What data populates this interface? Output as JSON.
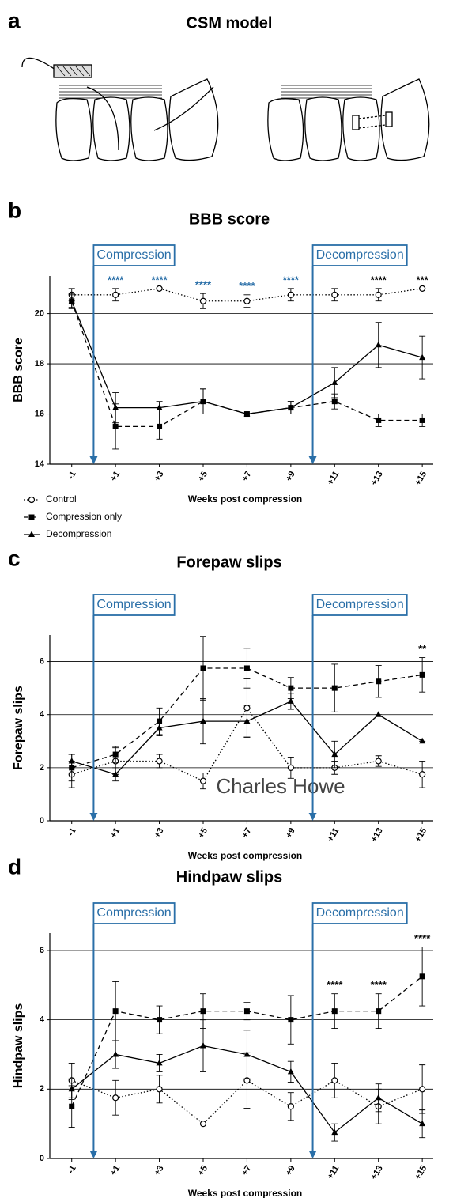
{
  "figure": {
    "panel_a": {
      "label": "a",
      "title": "CSM model"
    },
    "watermark": "Charles Howe"
  },
  "chart_data": [
    {
      "type": "line",
      "panel_label": "b",
      "title": "BBB score",
      "y_label": "BBB score",
      "x_label": "Weeks post compression",
      "x": [
        -1,
        1,
        3,
        5,
        7,
        9,
        11,
        13,
        15
      ],
      "xlim": [
        -2,
        15.5
      ],
      "xticks": [
        -1,
        {
          "value": 1,
          "label": "+1"
        },
        {
          "value": 3,
          "label": "+3"
        },
        {
          "value": 5,
          "label": "+5"
        },
        {
          "value": 7,
          "label": "+7"
        },
        {
          "value": 9,
          "label": "+9"
        },
        {
          "value": 11,
          "label": "+11"
        },
        {
          "value": 13,
          "label": "+13"
        },
        {
          "value": 15,
          "label": "+15"
        }
      ],
      "ylim": [
        14,
        21.5
      ],
      "yticks": [
        14,
        16,
        18,
        20
      ],
      "grid": true,
      "legend": "bottom-left",
      "events": [
        {
          "x": 0,
          "label": "Compression"
        },
        {
          "x": 10,
          "label": "Decompression"
        }
      ],
      "event_color": "#2a6fa8",
      "significance": [
        {
          "x": 1,
          "label": "****",
          "color": "#2a6fa8"
        },
        {
          "x": 3,
          "label": "****",
          "color": "#2a6fa8"
        },
        {
          "x": 5,
          "label": "****",
          "color": "#2a6fa8"
        },
        {
          "x": 7,
          "label": "****",
          "color": "#2a6fa8"
        },
        {
          "x": 9,
          "label": "****",
          "color": "#2a6fa8"
        },
        {
          "x": 13,
          "label": "****",
          "color": "#000000"
        },
        {
          "x": 15,
          "label": "***",
          "color": "#000000"
        }
      ],
      "series": [
        {
          "name": "Control",
          "color": "#000000",
          "marker": "circle",
          "line_style": "dotted",
          "values": [
            20.75,
            20.75,
            21,
            20.5,
            20.5,
            20.75,
            20.75,
            20.75,
            21
          ],
          "errors": [
            0.25,
            0.25,
            0,
            0.3,
            0.25,
            0.25,
            0.25,
            0.25,
            0
          ]
        },
        {
          "name": "Compression only",
          "color": "#000000",
          "marker": "square",
          "line_style": "dashed",
          "values": [
            20.5,
            15.5,
            15.5,
            16.5,
            16,
            16.25,
            16.5,
            15.75,
            15.75
          ],
          "errors": [
            0.3,
            0.9,
            0.5,
            0.5,
            0,
            0.25,
            0.3,
            0.25,
            0.25
          ]
        },
        {
          "name": "Decompression",
          "color": "#000000",
          "marker": "triangle",
          "line_style": "solid",
          "values": [
            20.5,
            16.25,
            16.25,
            16.5,
            16,
            16.25,
            17.25,
            18.75,
            18.25
          ],
          "errors": [
            0.25,
            0.6,
            0.25,
            0.5,
            0,
            0.25,
            0.6,
            0.9,
            0.85
          ]
        }
      ]
    },
    {
      "type": "line",
      "panel_label": "c",
      "title": "Forepaw slips",
      "y_label": "Forepaw slips",
      "x_label": "Weeks post compression",
      "x": [
        -1,
        1,
        3,
        5,
        7,
        9,
        11,
        13,
        15
      ],
      "xlim": [
        -2,
        15.5
      ],
      "xticks": [
        -1,
        {
          "value": 1,
          "label": "+1"
        },
        {
          "value": 3,
          "label": "+3"
        },
        {
          "value": 5,
          "label": "+5"
        },
        {
          "value": 7,
          "label": "+7"
        },
        {
          "value": 9,
          "label": "+9"
        },
        {
          "value": 11,
          "label": "+11"
        },
        {
          "value": 13,
          "label": "+13"
        },
        {
          "value": 15,
          "label": "+15"
        }
      ],
      "ylim": [
        0,
        7
      ],
      "yticks": [
        0,
        2,
        4,
        6
      ],
      "grid": true,
      "events": [
        {
          "x": 0,
          "label": "Compression"
        },
        {
          "x": 10,
          "label": "Decompression"
        }
      ],
      "event_color": "#2a6fa8",
      "significance": [
        {
          "x": 15,
          "label": "**",
          "color": "#000000"
        }
      ],
      "series": [
        {
          "name": "Control",
          "color": "#000000",
          "marker": "circle",
          "line_style": "dotted",
          "values": [
            1.75,
            2.25,
            2.25,
            1.5,
            4.25,
            2,
            2,
            2.25,
            1.75
          ],
          "errors": [
            0.5,
            0.5,
            0.25,
            0.3,
            1.1,
            0.4,
            0.25,
            0.2,
            0.5
          ]
        },
        {
          "name": "Compression only",
          "color": "#000000",
          "marker": "square",
          "line_style": "dashed",
          "values": [
            2,
            2.5,
            3.75,
            5.75,
            5.75,
            5,
            5,
            5.25,
            5.5
          ],
          "errors": [
            0.5,
            0.3,
            0.5,
            1.2,
            0.75,
            0.4,
            0.9,
            0.6,
            0.65
          ]
        },
        {
          "name": "Decompression",
          "color": "#000000",
          "marker": "triangle",
          "line_style": "solid",
          "values": [
            2.25,
            1.75,
            3.5,
            3.75,
            3.75,
            4.5,
            2.5,
            4,
            3
          ],
          "errors": [
            0.25,
            0.25,
            0.3,
            0.85,
            0.6,
            0.3,
            0.5,
            0,
            0
          ]
        }
      ]
    },
    {
      "type": "line",
      "panel_label": "d",
      "title": "Hindpaw slips",
      "y_label": "Hindpaw slips",
      "x_label": "Weeks post compression",
      "x": [
        -1,
        1,
        3,
        5,
        7,
        9,
        11,
        13,
        15
      ],
      "xlim": [
        -2,
        15.5
      ],
      "xticks": [
        -1,
        {
          "value": 1,
          "label": "+1"
        },
        {
          "value": 3,
          "label": "+3"
        },
        {
          "value": 5,
          "label": "+5"
        },
        {
          "value": 7,
          "label": "+7"
        },
        {
          "value": 9,
          "label": "+9"
        },
        {
          "value": 11,
          "label": "+11"
        },
        {
          "value": 13,
          "label": "+13"
        },
        {
          "value": 15,
          "label": "+15"
        }
      ],
      "ylim": [
        0,
        6.5
      ],
      "yticks": [
        0,
        2,
        4,
        6
      ],
      "grid": true,
      "events": [
        {
          "x": 0,
          "label": "Compression"
        },
        {
          "x": 10,
          "label": "Decompression"
        }
      ],
      "event_color": "#2a6fa8",
      "significance": [
        {
          "x": 11,
          "label": "****",
          "color": "#000000"
        },
        {
          "x": 13,
          "label": "****",
          "color": "#000000"
        },
        {
          "x": 15,
          "label": "****",
          "color": "#000000"
        }
      ],
      "series": [
        {
          "name": "Control",
          "color": "#000000",
          "marker": "circle",
          "line_style": "dotted",
          "values": [
            2.25,
            1.75,
            2,
            1,
            2.25,
            1.5,
            2.25,
            1.5,
            2
          ],
          "errors": [
            0.5,
            0.5,
            0.4,
            0,
            0.8,
            0.4,
            0.5,
            0.5,
            0.7
          ]
        },
        {
          "name": "Compression only",
          "color": "#000000",
          "marker": "square",
          "line_style": "dashed",
          "values": [
            1.5,
            4.25,
            4,
            4.25,
            4.25,
            4,
            4.25,
            4.25,
            5.25
          ],
          "errors": [
            0.6,
            0.85,
            0.4,
            0.5,
            0.25,
            0.7,
            0.5,
            0.5,
            0.85
          ]
        },
        {
          "name": "Decompression",
          "color": "#000000",
          "marker": "triangle",
          "line_style": "solid",
          "values": [
            2,
            3,
            2.75,
            3.25,
            3,
            2.5,
            0.75,
            1.75,
            1
          ],
          "errors": [
            0.3,
            0.4,
            0.25,
            0.75,
            0.7,
            0.3,
            0.25,
            0.4,
            0.4
          ]
        }
      ]
    }
  ]
}
